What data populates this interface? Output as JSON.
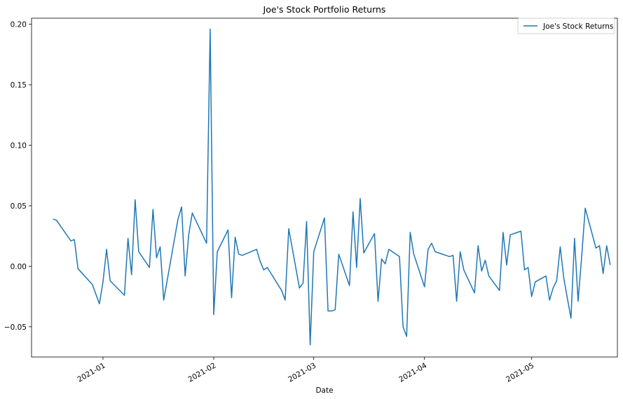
{
  "chart_data": {
    "type": "line",
    "title": "Joe's Stock Portfolio Returns",
    "xlabel": "Date",
    "ylabel": "",
    "ylim": [
      -0.075,
      0.205
    ],
    "xlim": [
      "2020-12-12",
      "2021-05-25"
    ],
    "x_ticks": [
      "2021-01-01",
      "2021-02-01",
      "2021-03-01",
      "2021-04-01",
      "2021-05-01"
    ],
    "x_tick_labels": [
      "2021-01",
      "2021-02",
      "2021-03",
      "2021-04",
      "2021-05"
    ],
    "y_ticks": [
      -0.05,
      0.0,
      0.05,
      0.1,
      0.15,
      0.2
    ],
    "y_tick_labels": [
      "−0.05",
      "0.00",
      "0.05",
      "0.10",
      "0.15",
      "0.20"
    ],
    "grid": false,
    "legend": {
      "position": "top-right",
      "entries": [
        "Joe's  Stock Returns"
      ]
    },
    "series": [
      {
        "name": "Joe's  Stock Returns",
        "color": "#1f77b4",
        "points": [
          [
            "2020-12-18",
            0.039
          ],
          [
            "2020-12-19",
            0.038
          ],
          [
            "2020-12-23",
            0.021
          ],
          [
            "2020-12-24",
            0.022
          ],
          [
            "2020-12-25",
            -0.002
          ],
          [
            "2020-12-29",
            -0.015
          ],
          [
            "2020-12-31",
            -0.031
          ],
          [
            "2021-01-01",
            -0.013
          ],
          [
            "2021-01-02",
            0.014
          ],
          [
            "2021-01-03",
            -0.012
          ],
          [
            "2021-01-07",
            -0.024
          ],
          [
            "2021-01-08",
            0.023
          ],
          [
            "2021-01-09",
            -0.007
          ],
          [
            "2021-01-10",
            0.055
          ],
          [
            "2021-01-11",
            0.012
          ],
          [
            "2021-01-14",
            -0.001
          ],
          [
            "2021-01-15",
            0.047
          ],
          [
            "2021-01-16",
            0.007
          ],
          [
            "2021-01-17",
            0.016
          ],
          [
            "2021-01-18",
            -0.028
          ],
          [
            "2021-01-22",
            0.039
          ],
          [
            "2021-01-23",
            0.049
          ],
          [
            "2021-01-24",
            -0.008
          ],
          [
            "2021-01-25",
            0.026
          ],
          [
            "2021-01-26",
            0.044
          ],
          [
            "2021-01-30",
            0.019
          ],
          [
            "2021-01-31",
            0.196
          ],
          [
            "2021-02-01",
            -0.04
          ],
          [
            "2021-02-02",
            0.012
          ],
          [
            "2021-02-05",
            0.03
          ],
          [
            "2021-02-06",
            -0.026
          ],
          [
            "2021-02-07",
            0.024
          ],
          [
            "2021-02-08",
            0.01
          ],
          [
            "2021-02-09",
            0.009
          ],
          [
            "2021-02-13",
            0.014
          ],
          [
            "2021-02-14",
            0.004
          ],
          [
            "2021-02-15",
            -0.003
          ],
          [
            "2021-02-16",
            -0.001
          ],
          [
            "2021-02-20",
            -0.02
          ],
          [
            "2021-02-21",
            -0.028
          ],
          [
            "2021-02-22",
            0.031
          ],
          [
            "2021-02-25",
            -0.018
          ],
          [
            "2021-02-26",
            -0.014
          ],
          [
            "2021-02-27",
            0.037
          ],
          [
            "2021-02-28",
            -0.065
          ],
          [
            "2021-03-01",
            0.012
          ],
          [
            "2021-03-04",
            0.04
          ],
          [
            "2021-03-05",
            -0.037
          ],
          [
            "2021-03-06",
            -0.037
          ],
          [
            "2021-03-07",
            -0.036
          ],
          [
            "2021-03-08",
            0.01
          ],
          [
            "2021-03-11",
            -0.016
          ],
          [
            "2021-03-12",
            0.045
          ],
          [
            "2021-03-13",
            -0.001
          ],
          [
            "2021-03-14",
            0.056
          ],
          [
            "2021-03-15",
            0.011
          ],
          [
            "2021-03-18",
            0.027
          ],
          [
            "2021-03-19",
            -0.029
          ],
          [
            "2021-03-20",
            0.006
          ],
          [
            "2021-03-21",
            0.002
          ],
          [
            "2021-03-22",
            0.014
          ],
          [
            "2021-03-25",
            0.008
          ],
          [
            "2021-03-26",
            -0.05
          ],
          [
            "2021-03-27",
            -0.058
          ],
          [
            "2021-03-28",
            0.028
          ],
          [
            "2021-03-29",
            0.01
          ],
          [
            "2021-04-01",
            -0.017
          ],
          [
            "2021-04-02",
            0.014
          ],
          [
            "2021-04-03",
            0.019
          ],
          [
            "2021-04-04",
            0.012
          ],
          [
            "2021-04-08",
            0.008
          ],
          [
            "2021-04-09",
            0.009
          ],
          [
            "2021-04-10",
            -0.029
          ],
          [
            "2021-04-11",
            0.012
          ],
          [
            "2021-04-12",
            -0.003
          ],
          [
            "2021-04-15",
            -0.022
          ],
          [
            "2021-04-16",
            0.017
          ],
          [
            "2021-04-17",
            -0.004
          ],
          [
            "2021-04-18",
            0.005
          ],
          [
            "2021-04-19",
            -0.008
          ],
          [
            "2021-04-22",
            -0.02
          ],
          [
            "2021-04-23",
            0.028
          ],
          [
            "2021-04-24",
            0.001
          ],
          [
            "2021-04-25",
            0.026
          ],
          [
            "2021-04-28",
            0.029
          ],
          [
            "2021-04-29",
            -0.003
          ],
          [
            "2021-04-30",
            -0.001
          ],
          [
            "2021-05-01",
            -0.025
          ],
          [
            "2021-05-02",
            -0.013
          ],
          [
            "2021-05-05",
            -0.008
          ],
          [
            "2021-05-06",
            -0.028
          ],
          [
            "2021-05-07",
            -0.018
          ],
          [
            "2021-05-08",
            -0.012
          ],
          [
            "2021-05-09",
            0.016
          ],
          [
            "2021-05-10",
            -0.01
          ],
          [
            "2021-05-12",
            -0.043
          ],
          [
            "2021-05-13",
            0.023
          ],
          [
            "2021-05-14",
            -0.029
          ],
          [
            "2021-05-15",
            0.008
          ],
          [
            "2021-05-16",
            0.048
          ],
          [
            "2021-05-19",
            0.015
          ],
          [
            "2021-05-20",
            0.017
          ],
          [
            "2021-05-21",
            -0.006
          ],
          [
            "2021-05-22",
            0.017
          ],
          [
            "2021-05-23",
            0.001
          ]
        ]
      }
    ]
  }
}
